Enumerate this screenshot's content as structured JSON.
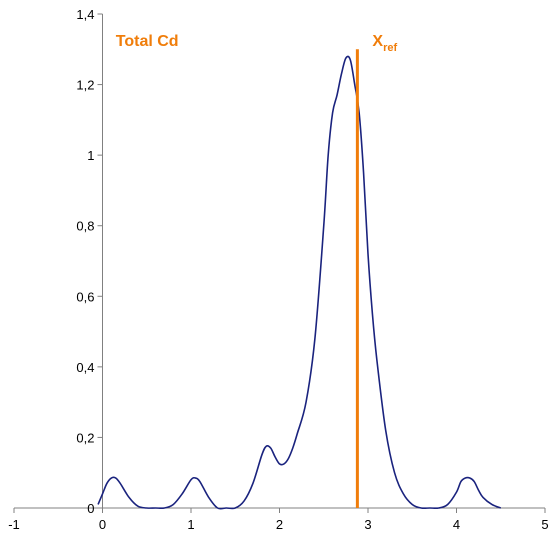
{
  "chart_data": {
    "type": "line",
    "title": "",
    "xlabel": "",
    "ylabel": "",
    "xlim": [
      -1,
      5
    ],
    "ylim": [
      0,
      1.4
    ],
    "x_ticks": [
      -1,
      0,
      1,
      2,
      3,
      4,
      5
    ],
    "y_ticks": [
      0,
      0.2,
      0.4,
      0.6,
      0.8,
      1,
      1.2,
      1.4
    ],
    "x_tick_labels": [
      "-1",
      "0",
      "1",
      "2",
      "3",
      "4",
      "5"
    ],
    "y_tick_labels": [
      "0",
      "0,2",
      "0,4",
      "0,6",
      "0,8",
      "1",
      "1,2",
      "1,4"
    ],
    "grid": false,
    "series": [
      {
        "color": "#1a237e",
        "x": [
          -0.05,
          0.0,
          0.05,
          0.1,
          0.15,
          0.2,
          0.3,
          0.4,
          0.5,
          0.6,
          0.7,
          0.8,
          0.9,
          1.0,
          1.05,
          1.1,
          1.2,
          1.3,
          1.4,
          1.5,
          1.6,
          1.7,
          1.8,
          1.85,
          1.9,
          1.95,
          2.0,
          2.05,
          2.1,
          2.15,
          2.2,
          2.3,
          2.4,
          2.5,
          2.55,
          2.6,
          2.65,
          2.7,
          2.75,
          2.8,
          2.85,
          2.9,
          2.95,
          3.0,
          3.05,
          3.1,
          3.2,
          3.3,
          3.4,
          3.5,
          3.6,
          3.7,
          3.8,
          3.9,
          4.0,
          4.05,
          4.1,
          4.15,
          4.2,
          4.25,
          4.3,
          4.4,
          4.5
        ],
        "y": [
          0.01,
          0.04,
          0.07,
          0.085,
          0.085,
          0.07,
          0.03,
          0.005,
          0.0,
          0.0,
          0.0,
          0.01,
          0.04,
          0.08,
          0.085,
          0.075,
          0.03,
          0.0,
          0.0,
          0.0,
          0.02,
          0.07,
          0.15,
          0.175,
          0.17,
          0.145,
          0.125,
          0.125,
          0.14,
          0.17,
          0.21,
          0.3,
          0.48,
          0.8,
          1.0,
          1.12,
          1.17,
          1.23,
          1.275,
          1.27,
          1.2,
          1.12,
          0.95,
          0.72,
          0.55,
          0.42,
          0.22,
          0.1,
          0.04,
          0.01,
          0.0,
          0.0,
          0.0,
          0.01,
          0.045,
          0.075,
          0.085,
          0.085,
          0.075,
          0.05,
          0.03,
          0.01,
          0.0
        ]
      }
    ],
    "vertical_line": {
      "x": 2.88,
      "y_range": [
        0,
        1.3
      ],
      "color": "#f07d0a"
    },
    "annotations": [
      {
        "id": "total",
        "text": "Total Cd",
        "x": 0.15,
        "y": 1.31,
        "color": "#f07d0a"
      },
      {
        "id": "xref",
        "text": "X",
        "sub": "ref",
        "x": 3.05,
        "y": 1.31,
        "color": "#f07d0a"
      }
    ]
  }
}
